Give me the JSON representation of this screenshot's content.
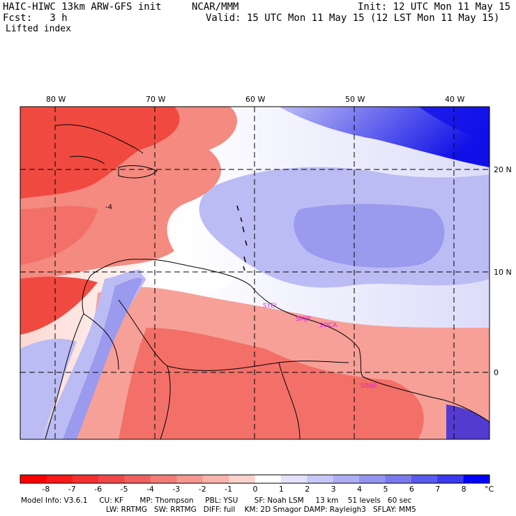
{
  "header": {
    "model_title": "HAIC-HIWC 13km ARW-GFS init",
    "org": "NCAR/MMM",
    "init": "Init: 12 UTC Mon 11 May 15",
    "fcst": "Fcst:   3 h",
    "valid": "Valid: 15 UTC Mon 11 May 15 (12 LST Mon 11 May 15)",
    "field": "Lifted index"
  },
  "map": {
    "lon_labels": [
      "80 W",
      "70 W",
      "60 W",
      "50 W",
      "40 W"
    ],
    "lat_labels": [
      "20 N",
      "10 N",
      "0"
    ],
    "contour_label": "-4",
    "stations": [
      "SYEI",
      "SMJP",
      "SOCA",
      "SBBE"
    ],
    "colors": {
      "deep_red": "#e81010",
      "red": "#f04a40",
      "light_red": "#f8a8a0",
      "pale_red": "#fcd8d2",
      "white": "#ffffff",
      "pale_blue": "#dcdcfa",
      "light_blue": "#bcbcf4",
      "blue": "#9a9aee",
      "deep_blue": "#1010e8",
      "station": "#e020e0"
    }
  },
  "colorbar": {
    "labels": [
      "-8",
      "-7",
      "-6",
      "-5",
      "-4",
      "-3",
      "-2",
      "-1",
      "0",
      "1",
      "2",
      "3",
      "4",
      "5",
      "6",
      "7",
      "8"
    ],
    "unit": "°C",
    "colors": [
      "#ff0000",
      "#f81818",
      "#f43030",
      "#f04848",
      "#f06060",
      "#f27c78",
      "#f49890",
      "#f8b4ac",
      "#fcd2cc",
      "#ffffff",
      "#e2e2fc",
      "#c8c8f8",
      "#aeaef4",
      "#9494f0",
      "#7a7aee",
      "#5a5aee",
      "#3a3aee",
      "#0000ff"
    ]
  },
  "footer": {
    "line1": "Model Info: V3.6.1     CU: KF       MP: Thompson     PBL: YSU       SF: Noah LSM     13 km    51 levels   60 sec",
    "line2": "LW: RRTMG   SW: RRTMG   DIFF: full    KM: 2D Smagor DAMP: Rayleigh3   SFLAY: MM5"
  }
}
